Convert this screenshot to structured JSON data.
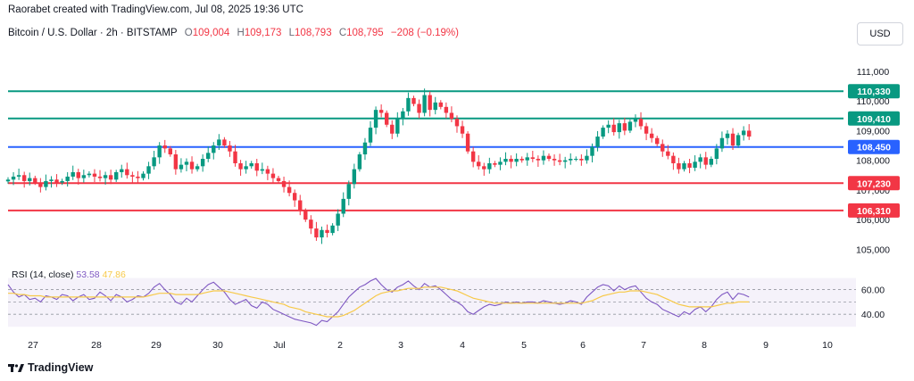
{
  "header": {
    "attribution": "Raorabet created with TradingView.com, Jul 08, 2025 19:36 UTC",
    "symbol": "Bitcoin / U.S. Dollar · 2h · BITSTAMP",
    "o_label": "O",
    "o_value": "109,004",
    "h_label": "H",
    "h_value": "109,173",
    "l_label": "L",
    "l_value": "108,793",
    "c_label": "C",
    "c_value": "108,795",
    "change": "−208 (−0.19%)"
  },
  "currency_button": "USD",
  "rsi": {
    "label": "RSI (14, close)",
    "value1": "53.58",
    "value2": "47.86"
  },
  "brand": "TradingView",
  "colors": {
    "up": "#089981",
    "down": "#f23645",
    "resistance": "#089981",
    "pivot": "#2962ff",
    "support": "#f23645",
    "rsi": "#7e57c2",
    "rsi_ma": "#f7c948"
  },
  "chart_data": [
    {
      "type": "candlestick",
      "title": "Bitcoin / U.S. Dollar · 2h · BITSTAMP",
      "xlabel": "",
      "ylabel": "",
      "ylim": [
        104500,
        111600
      ],
      "x_ticks": [
        "27",
        "28",
        "29",
        "30",
        "Jul",
        "2",
        "3",
        "4",
        "5",
        "6",
        "7",
        "8",
        "9",
        "10"
      ],
      "y_ticks": [
        "105,000",
        "106,000",
        "107,000",
        "108,000",
        "109,000",
        "110,000",
        "111,000"
      ],
      "horizontal_levels": [
        {
          "value": 110330,
          "label": "110,330",
          "color": "#089981"
        },
        {
          "value": 109410,
          "label": "109,410",
          "color": "#089981"
        },
        {
          "value": 108450,
          "label": "108,450",
          "color": "#2962ff"
        },
        {
          "value": 107230,
          "label": "107,230",
          "color": "#f23645"
        },
        {
          "value": 106310,
          "label": "106,310",
          "color": "#f23645"
        }
      ],
      "close_path": [
        107350,
        107450,
        107500,
        107300,
        107400,
        107250,
        107100,
        107300,
        107350,
        107250,
        107300,
        107450,
        107600,
        107400,
        107500,
        107550,
        107450,
        107400,
        107500,
        107350,
        107600,
        107700,
        107500,
        107450,
        107400,
        107550,
        107800,
        108100,
        108500,
        108400,
        108200,
        107700,
        107850,
        107950,
        107700,
        107800,
        108050,
        108250,
        108500,
        108700,
        108500,
        108300,
        107900,
        107700,
        107800,
        107900,
        107650,
        107700,
        107550,
        107400,
        107300,
        107100,
        106900,
        106650,
        106300,
        106000,
        105700,
        105400,
        105650,
        105550,
        105800,
        106200,
        106700,
        107200,
        107700,
        108200,
        108600,
        109100,
        109700,
        109600,
        109200,
        108900,
        109400,
        109650,
        110100,
        109900,
        109600,
        110200,
        109700,
        109950,
        109800,
        109600,
        109400,
        109150,
        108900,
        108300,
        107950,
        107800,
        107700,
        107900,
        107850,
        107950,
        108050,
        107950,
        108050,
        108000,
        108100,
        108050,
        108000,
        108150,
        108050,
        108000,
        107950,
        108000,
        108050,
        108050,
        108000,
        108150,
        108450,
        108800,
        109100,
        109200,
        108950,
        109250,
        109000,
        109300,
        109400,
        109150,
        108900,
        108750,
        108550,
        108300,
        108150,
        107900,
        107700,
        107900,
        107750,
        107950,
        108100,
        107850,
        108050,
        108400,
        108750,
        108900,
        108500,
        108850,
        109000,
        108800
      ]
    },
    {
      "type": "line",
      "title": "RSI (14, close)",
      "xlabel": "",
      "ylabel": "",
      "ylim": [
        30,
        72
      ],
      "y_ticks": [
        "60.00",
        "40.00"
      ],
      "bands": [
        60,
        50,
        40
      ],
      "series": [
        {
          "name": "RSI",
          "color": "#7e57c2",
          "values": [
            64,
            58,
            54,
            56,
            52,
            53,
            50,
            55,
            54,
            52,
            56,
            55,
            51,
            54,
            56,
            52,
            53,
            58,
            55,
            51,
            56,
            54,
            50,
            52,
            55,
            54,
            57,
            62,
            65,
            60,
            56,
            50,
            48,
            53,
            50,
            55,
            60,
            64,
            66,
            62,
            58,
            52,
            48,
            50,
            52,
            47,
            45,
            50,
            48,
            44,
            42,
            40,
            38,
            36,
            35,
            34,
            33,
            31,
            35,
            34,
            38,
            42,
            48,
            54,
            58,
            62,
            64,
            67,
            69,
            64,
            60,
            58,
            62,
            64,
            67,
            63,
            60,
            65,
            62,
            63,
            60,
            56,
            52,
            50,
            47,
            42,
            40,
            43,
            46,
            48,
            47,
            48,
            50,
            49,
            50,
            49,
            50,
            50,
            49,
            51,
            50,
            49,
            48,
            49,
            51,
            50,
            48,
            54,
            58,
            62,
            64,
            63,
            59,
            63,
            60,
            62,
            63,
            58,
            53,
            50,
            48,
            44,
            42,
            40,
            38,
            42,
            40,
            44,
            46,
            42,
            46,
            52,
            56,
            58,
            52,
            57,
            56,
            54
          ]
        },
        {
          "name": "RSI-based MA",
          "color": "#f7c948",
          "values": [
            57,
            57,
            56,
            56,
            55,
            55,
            55,
            54,
            54,
            54,
            54,
            54,
            54,
            54,
            54,
            54,
            54,
            54,
            54,
            54,
            54,
            54,
            54,
            54,
            54,
            54,
            55,
            56,
            57,
            57,
            57,
            56,
            56,
            56,
            56,
            56,
            57,
            58,
            59,
            59,
            59,
            58,
            57,
            56,
            55,
            54,
            53,
            52,
            51,
            50,
            49,
            48,
            46,
            45,
            44,
            42,
            41,
            40,
            39,
            38,
            38,
            38,
            39,
            41,
            43,
            46,
            49,
            52,
            55,
            57,
            58,
            59,
            59,
            60,
            61,
            61,
            61,
            62,
            62,
            62,
            62,
            61,
            60,
            59,
            57,
            55,
            53,
            52,
            51,
            50,
            49,
            49,
            49,
            49,
            49,
            49,
            49,
            49,
            49,
            49,
            49,
            49,
            49,
            49,
            49,
            49,
            49,
            50,
            51,
            53,
            55,
            56,
            57,
            58,
            58,
            59,
            59,
            59,
            58,
            57,
            56,
            54,
            52,
            50,
            48,
            47,
            46,
            46,
            46,
            46,
            46,
            47,
            48,
            49,
            49,
            50,
            50,
            50
          ]
        }
      ]
    }
  ]
}
